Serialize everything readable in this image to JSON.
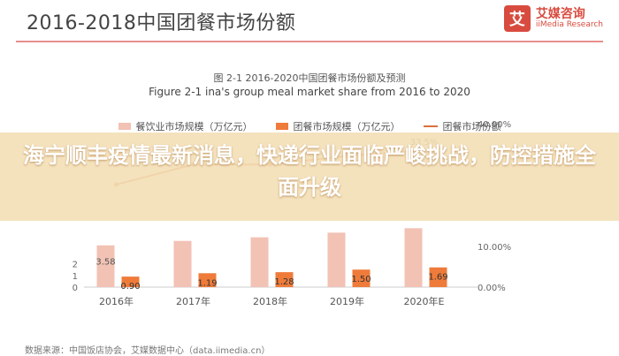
{
  "header": {
    "title": "2016-2018中国团餐市场份额"
  },
  "logo": {
    "cn": "艾媒咨询",
    "en": "iiMedia Research",
    "mark": "艾"
  },
  "figure": {
    "caption_cn": "图 2-1 2016-2020中国团餐市场份额及预测",
    "caption_en": "Figure 2-1 ina's group meal market share from 2016 to 2020"
  },
  "legend": {
    "series1": "餐饮业市场规模（万亿元）",
    "series2": "团餐市场规模（万亿元）",
    "series3": "团餐市场份额"
  },
  "colors": {
    "series1": "#f2c2b4",
    "series2": "#ef7b3a",
    "series3": "#d9713c",
    "banner": "#f3dfb6"
  },
  "banner": {
    "text": "海宁顺丰疫情最新消息，快递行业面临严峻挑战，防控措施全面升级"
  },
  "source": {
    "text": "数据来源：中国饭店协会，艾媒数据中心（data.iimedia.cn）"
  },
  "chart_data": {
    "type": "bar",
    "categories": [
      "2016年",
      "2017年",
      "2018年",
      "2019年",
      "2020年E"
    ],
    "series": [
      {
        "name": "餐饮业市场规模（万亿元）",
        "values": [
          3.58,
          3.96,
          4.27,
          4.67,
          5.05
        ]
      },
      {
        "name": "团餐市场规模（万亿元）",
        "values": [
          0.9,
          1.19,
          1.28,
          1.5,
          1.69
        ]
      },
      {
        "name": "团餐市场份额",
        "values": [
          25.1,
          30.0,
          30.0,
          32.1,
          33.5
        ]
      }
    ],
    "data_labels": {
      "series1": [
        "3.58",
        "",
        "",
        "",
        ""
      ],
      "series2": [
        "0.90",
        "1.19",
        "1.28",
        "1.50",
        "1.69"
      ],
      "series3": [
        "",
        "",
        "",
        "",
        "33.5%"
      ]
    },
    "y_left_ticks": [
      "0",
      "1",
      "2"
    ],
    "y_right_ticks": [
      "0.00%",
      "10.00%",
      "40.00%"
    ],
    "ylim_left": [
      0,
      6
    ],
    "ylim_right": [
      0,
      40
    ]
  }
}
